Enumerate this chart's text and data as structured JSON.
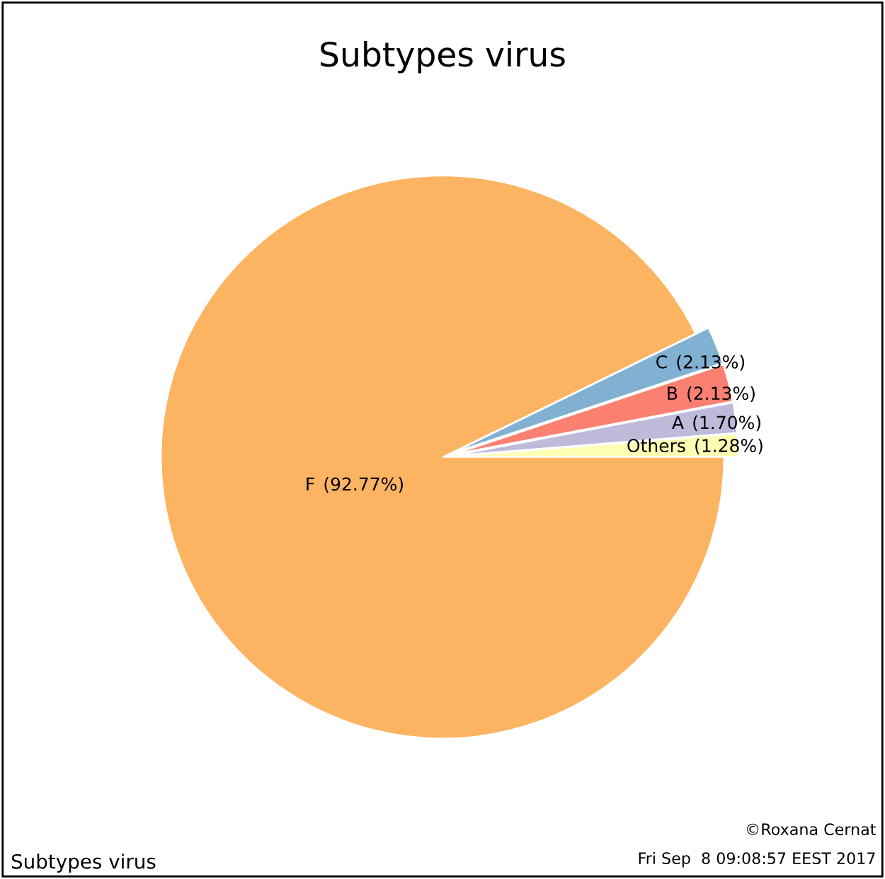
{
  "chart_data": {
    "type": "pie",
    "title": "Subtypes virus",
    "categories": [
      "Others",
      "A",
      "B",
      "C",
      "F"
    ],
    "values": [
      1.28,
      1.7,
      2.13,
      2.13,
      92.77
    ],
    "colors": [
      "#ffffb3",
      "#bebada",
      "#fb8072",
      "#80b1d3",
      "#fdb462"
    ],
    "value_labels": [
      "(1.28%)",
      "(1.70%)",
      "(2.13%)",
      "(2.13%)",
      "(92.77%)"
    ],
    "annotations": [
      "Subtypes virus",
      "©Roxana Cernat",
      "Fri Sep  8 09:08:57 EEST 2017"
    ]
  }
}
